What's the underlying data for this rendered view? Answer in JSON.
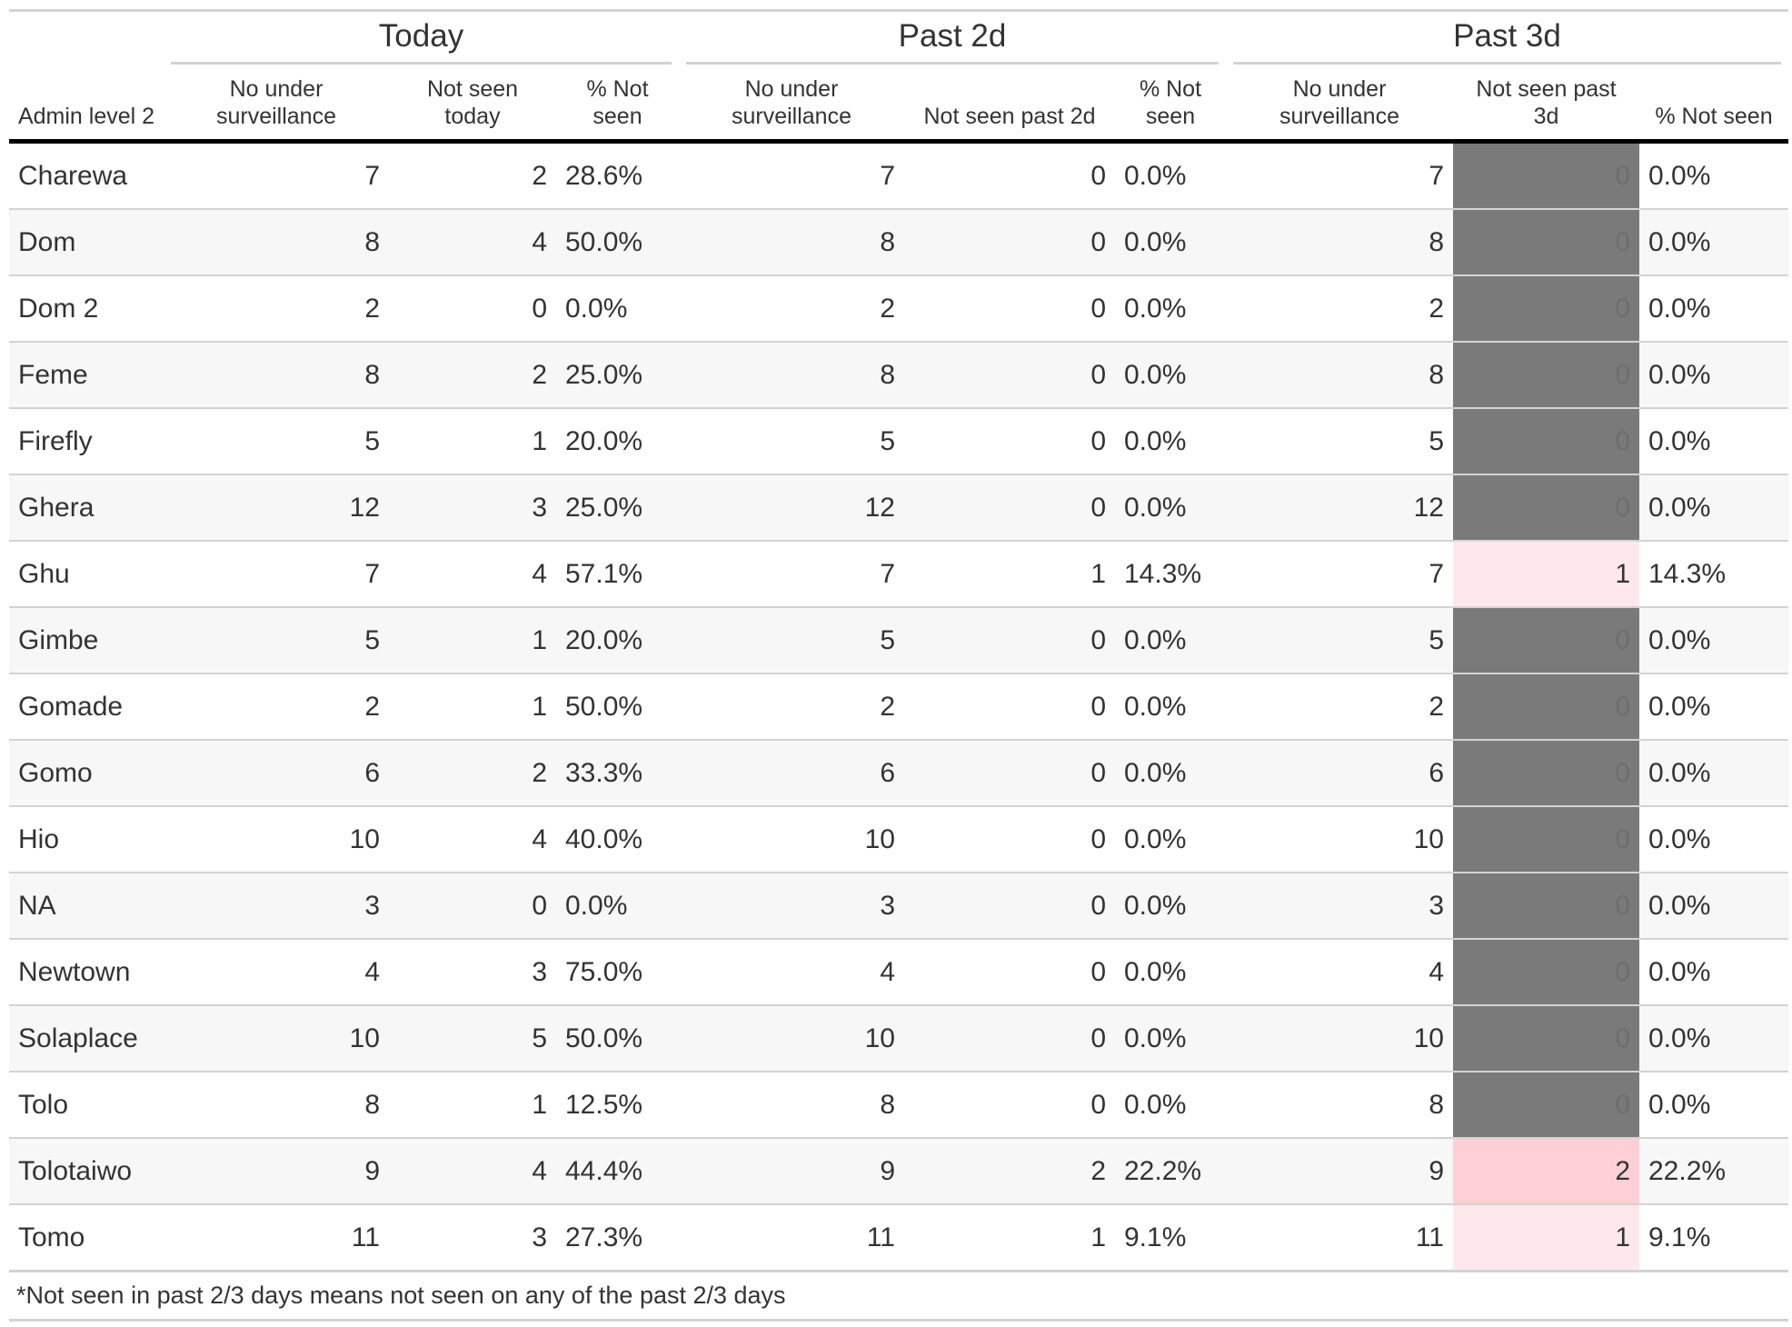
{
  "spanners": {
    "today": "Today",
    "past2d": "Past 2d",
    "past3d": "Past 3d"
  },
  "columns": {
    "admin": "Admin level 2",
    "today_no": "No under surveillance",
    "today_not_seen": "Not seen today",
    "today_pct": "% Not seen",
    "p2_no": "No under surveillance",
    "p2_not_seen": "Not seen past 2d",
    "p2_pct": "% Not seen",
    "p3_no": "No under surveillance",
    "p3_not_seen": "Not seen past 3d",
    "p3_pct": "% Not seen"
  },
  "highlight_colors": {
    "zero": "#7a7a7a",
    "one": "#ffe8eb",
    "two": "#ffcfd6"
  },
  "rows": [
    {
      "name": "Charewa",
      "t_no": "7",
      "t_ns": "2",
      "t_pct": "28.6%",
      "p2_no": "7",
      "p2_ns": "0",
      "p2_pct": "0.0%",
      "p3_no": "7",
      "p3_ns": "0",
      "p3_pct": "0.0%",
      "p3_level": "zero"
    },
    {
      "name": "Dom",
      "t_no": "8",
      "t_ns": "4",
      "t_pct": "50.0%",
      "p2_no": "8",
      "p2_ns": "0",
      "p2_pct": "0.0%",
      "p3_no": "8",
      "p3_ns": "0",
      "p3_pct": "0.0%",
      "p3_level": "zero"
    },
    {
      "name": "Dom 2",
      "t_no": "2",
      "t_ns": "0",
      "t_pct": "0.0%",
      "p2_no": "2",
      "p2_ns": "0",
      "p2_pct": "0.0%",
      "p3_no": "2",
      "p3_ns": "0",
      "p3_pct": "0.0%",
      "p3_level": "zero"
    },
    {
      "name": "Feme",
      "t_no": "8",
      "t_ns": "2",
      "t_pct": "25.0%",
      "p2_no": "8",
      "p2_ns": "0",
      "p2_pct": "0.0%",
      "p3_no": "8",
      "p3_ns": "0",
      "p3_pct": "0.0%",
      "p3_level": "zero"
    },
    {
      "name": "Firefly",
      "t_no": "5",
      "t_ns": "1",
      "t_pct": "20.0%",
      "p2_no": "5",
      "p2_ns": "0",
      "p2_pct": "0.0%",
      "p3_no": "5",
      "p3_ns": "0",
      "p3_pct": "0.0%",
      "p3_level": "zero"
    },
    {
      "name": "Ghera",
      "t_no": "12",
      "t_ns": "3",
      "t_pct": "25.0%",
      "p2_no": "12",
      "p2_ns": "0",
      "p2_pct": "0.0%",
      "p3_no": "12",
      "p3_ns": "0",
      "p3_pct": "0.0%",
      "p3_level": "zero"
    },
    {
      "name": "Ghu",
      "t_no": "7",
      "t_ns": "4",
      "t_pct": "57.1%",
      "p2_no": "7",
      "p2_ns": "1",
      "p2_pct": "14.3%",
      "p3_no": "7",
      "p3_ns": "1",
      "p3_pct": "14.3%",
      "p3_level": "one"
    },
    {
      "name": "Gimbe",
      "t_no": "5",
      "t_ns": "1",
      "t_pct": "20.0%",
      "p2_no": "5",
      "p2_ns": "0",
      "p2_pct": "0.0%",
      "p3_no": "5",
      "p3_ns": "0",
      "p3_pct": "0.0%",
      "p3_level": "zero"
    },
    {
      "name": "Gomade",
      "t_no": "2",
      "t_ns": "1",
      "t_pct": "50.0%",
      "p2_no": "2",
      "p2_ns": "0",
      "p2_pct": "0.0%",
      "p3_no": "2",
      "p3_ns": "0",
      "p3_pct": "0.0%",
      "p3_level": "zero"
    },
    {
      "name": "Gomo",
      "t_no": "6",
      "t_ns": "2",
      "t_pct": "33.3%",
      "p2_no": "6",
      "p2_ns": "0",
      "p2_pct": "0.0%",
      "p3_no": "6",
      "p3_ns": "0",
      "p3_pct": "0.0%",
      "p3_level": "zero"
    },
    {
      "name": "Hio",
      "t_no": "10",
      "t_ns": "4",
      "t_pct": "40.0%",
      "p2_no": "10",
      "p2_ns": "0",
      "p2_pct": "0.0%",
      "p3_no": "10",
      "p3_ns": "0",
      "p3_pct": "0.0%",
      "p3_level": "zero"
    },
    {
      "name": "NA",
      "t_no": "3",
      "t_ns": "0",
      "t_pct": "0.0%",
      "p2_no": "3",
      "p2_ns": "0",
      "p2_pct": "0.0%",
      "p3_no": "3",
      "p3_ns": "0",
      "p3_pct": "0.0%",
      "p3_level": "zero"
    },
    {
      "name": "Newtown",
      "t_no": "4",
      "t_ns": "3",
      "t_pct": "75.0%",
      "p2_no": "4",
      "p2_ns": "0",
      "p2_pct": "0.0%",
      "p3_no": "4",
      "p3_ns": "0",
      "p3_pct": "0.0%",
      "p3_level": "zero"
    },
    {
      "name": "Solaplace",
      "t_no": "10",
      "t_ns": "5",
      "t_pct": "50.0%",
      "p2_no": "10",
      "p2_ns": "0",
      "p2_pct": "0.0%",
      "p3_no": "10",
      "p3_ns": "0",
      "p3_pct": "0.0%",
      "p3_level": "zero"
    },
    {
      "name": "Tolo",
      "t_no": "8",
      "t_ns": "1",
      "t_pct": "12.5%",
      "p2_no": "8",
      "p2_ns": "0",
      "p2_pct": "0.0%",
      "p3_no": "8",
      "p3_ns": "0",
      "p3_pct": "0.0%",
      "p3_level": "zero"
    },
    {
      "name": "Tolotaiwo",
      "t_no": "9",
      "t_ns": "4",
      "t_pct": "44.4%",
      "p2_no": "9",
      "p2_ns": "2",
      "p2_pct": "22.2%",
      "p3_no": "9",
      "p3_ns": "2",
      "p3_pct": "22.2%",
      "p3_level": "two"
    },
    {
      "name": "Tomo",
      "t_no": "11",
      "t_ns": "3",
      "t_pct": "27.3%",
      "p2_no": "11",
      "p2_ns": "1",
      "p2_pct": "9.1%",
      "p3_no": "11",
      "p3_ns": "1",
      "p3_pct": "9.1%",
      "p3_level": "one"
    }
  ],
  "footnote": "*Not seen in past 2/3 days means not seen on any of the past 2/3 days"
}
